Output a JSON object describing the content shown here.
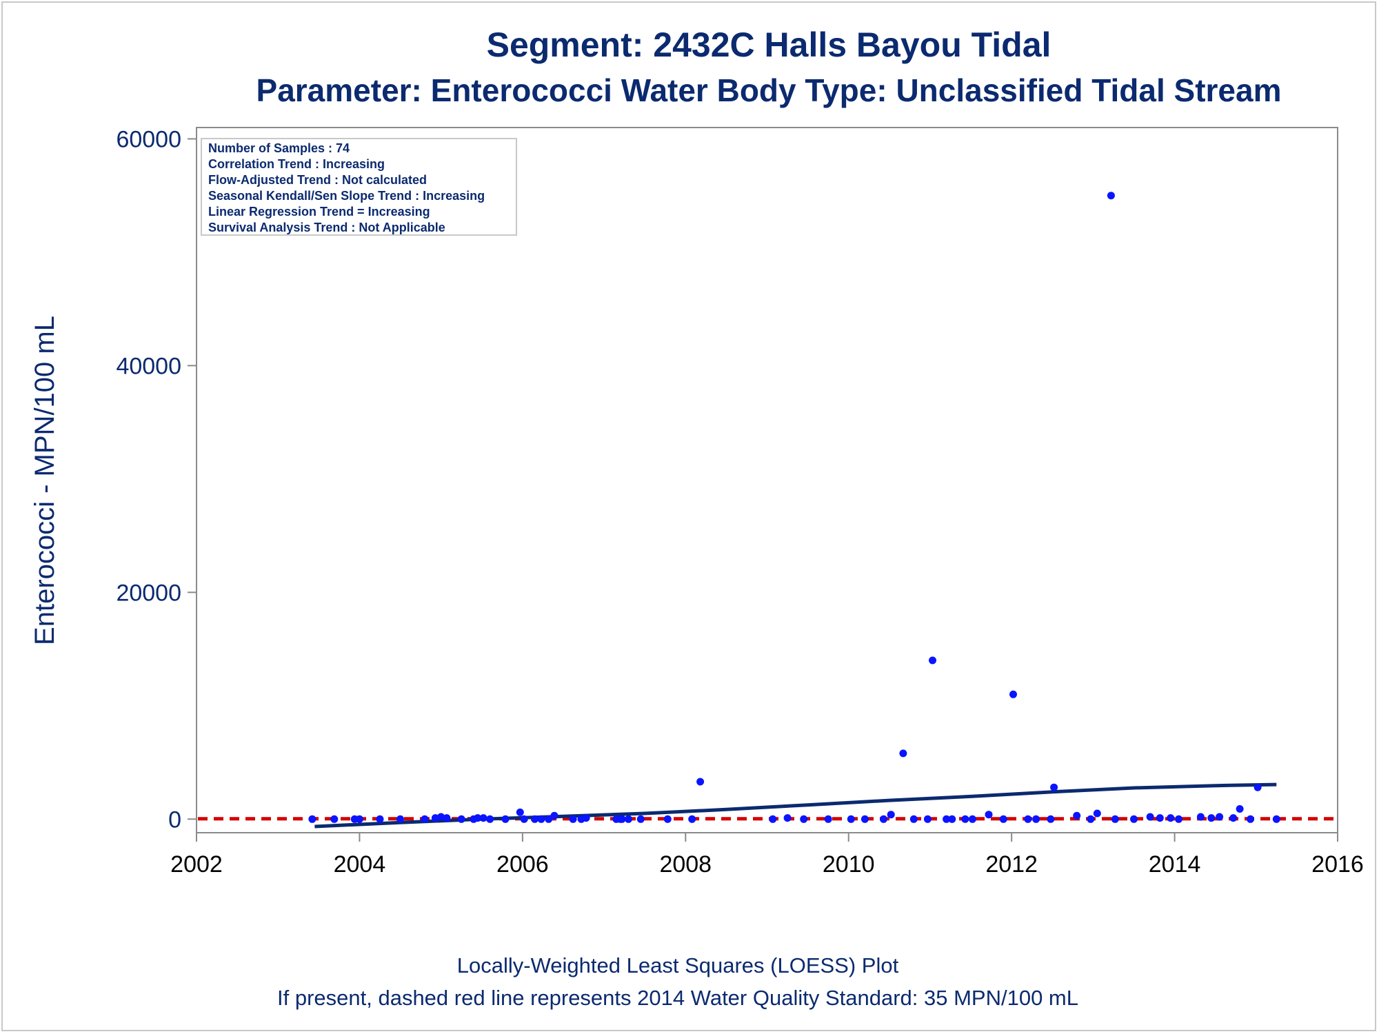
{
  "chart_data": {
    "type": "scatter",
    "title": "Segment: 2432C  Halls Bayou Tidal",
    "subtitle": "Parameter: Enterococci   Water Body Type: Unclassified Tidal Stream",
    "xlabel": "",
    "ylabel": "Enterococci - MPN/100 mL",
    "xlim": [
      2002,
      2016
    ],
    "ylim": [
      -1200,
      61000
    ],
    "x_ticks": [
      "2002",
      "2004",
      "2006",
      "2008",
      "2010",
      "2012",
      "2014",
      "2016"
    ],
    "y_ticks": [
      "0",
      "20000",
      "40000",
      "60000"
    ],
    "grid": false,
    "stats_box": {
      "placement": "top-left",
      "lines": [
        "Number of Samples : 74",
        "Correlation Trend : Increasing",
        "Flow-Adjusted Trend : Not calculated",
        "Seasonal Kendall/Sen Slope Trend : Increasing",
        "Linear Regression Trend = Increasing",
        "Survival Analysis Trend : Not Applicable"
      ]
    },
    "footnotes": [
      "Locally-Weighted Least Squares (LOESS) Plot",
      "If present, dashed red line represents 2014 Water Quality Standard: 35 MPN/100 mL"
    ],
    "standard_line": {
      "y": 35
    },
    "loess_line": {
      "x": [
        2003.45,
        2004.5,
        2005.5,
        2006.5,
        2007.5,
        2008.5,
        2009.5,
        2010.5,
        2011.5,
        2012.5,
        2013.5,
        2014.5,
        2015.25
      ],
      "y": [
        -650,
        -300,
        0,
        250,
        500,
        850,
        1250,
        1650,
        2000,
        2400,
        2750,
        2950,
        3050
      ]
    },
    "points": {
      "x": [
        2003.42,
        2003.69,
        2003.94,
        2004.25,
        2004.5,
        2004.8,
        2004.93,
        2005.0,
        2005.07,
        2005.25,
        2005.4,
        2005.52,
        2005.6,
        2005.79,
        2005.97,
        2006.02,
        2006.15,
        2006.23,
        2006.32,
        2006.39,
        2006.62,
        2006.72,
        2006.78,
        2007.15,
        2007.22,
        2007.3,
        2007.45,
        2007.78,
        2008.08,
        2008.18,
        2009.07,
        2009.25,
        2009.45,
        2009.75,
        2010.03,
        2010.2,
        2010.43,
        2010.52,
        2010.67,
        2010.8,
        2010.97,
        2011.03,
        2011.2,
        2011.27,
        2011.43,
        2011.52,
        2011.72,
        2011.9,
        2012.02,
        2012.2,
        2012.3,
        2012.48,
        2012.52,
        2012.8,
        2012.97,
        2013.05,
        2013.22,
        2013.27,
        2013.5,
        2013.7,
        2013.82,
        2013.95,
        2014.05,
        2014.32,
        2014.45,
        2014.55,
        2014.72,
        2014.8,
        2014.93,
        2015.02,
        2015.25,
        2007.2,
        2005.45,
        2004.0
      ],
      "y": [
        0,
        0,
        0,
        0,
        0,
        0,
        100,
        200,
        100,
        0,
        0,
        100,
        0,
        0,
        600,
        0,
        0,
        0,
        0,
        300,
        0,
        0,
        100,
        0,
        0,
        0,
        0,
        0,
        0,
        3300,
        0,
        100,
        0,
        0,
        0,
        0,
        0,
        400,
        5800,
        0,
        0,
        14000,
        0,
        0,
        0,
        0,
        400,
        0,
        11000,
        0,
        0,
        0,
        2800,
        300,
        0,
        500,
        55000,
        0,
        0,
        200,
        100,
        100,
        0,
        200,
        100,
        200,
        100,
        900,
        0,
        2800,
        0,
        0,
        100,
        0
      ]
    }
  }
}
